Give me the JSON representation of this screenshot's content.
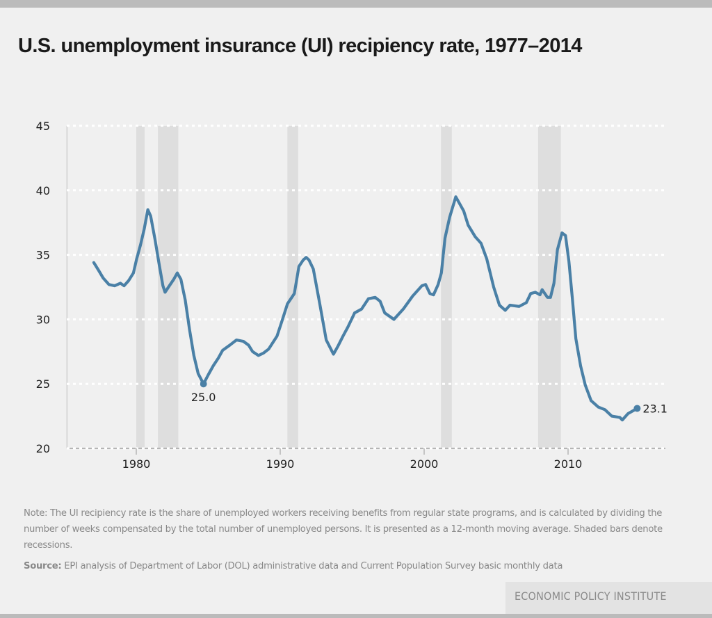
{
  "header": {
    "title": "U.S. unemployment insurance (UI) recipiency rate, 1977–2014"
  },
  "footer": {
    "note": "Note: The UI recipiency rate is the share of unemployed workers receiving benefits from regular state programs, and is calculated by dividing the number of weeks compensated by the total number of unemployed persons. It is presented as a 12-month moving average. Shaded bars denote recessions.",
    "source_label": "Source:",
    "source_text": " EPI analysis of Department of Labor (DOL) administrative data and Current Population Survey basic monthly data",
    "brand": "ECONOMIC POLICY INSTITUTE"
  },
  "colors": {
    "line": "#4a80a6",
    "recession": "#dedede",
    "gridline": "#ffffff",
    "axis": "#b5b5b5",
    "background": "#f0f0f0"
  },
  "chart_data": {
    "type": "line",
    "title": "U.S. unemployment insurance (UI) recipiency rate, 1977–2014",
    "xlabel": "",
    "ylabel": "",
    "xlim": [
      1975,
      2017.1
    ],
    "ylim": [
      20,
      45
    ],
    "x_ticks": [
      1980,
      1990,
      2000,
      2010
    ],
    "x_tick_labels": [
      "1980",
      "1990",
      "2000",
      "2010"
    ],
    "y_ticks": [
      20,
      25,
      30,
      35,
      40,
      45
    ],
    "y_tick_labels": [
      "20",
      "25",
      "30",
      "35",
      "40",
      "45"
    ],
    "grid": "horizontal dotted",
    "legend": "none",
    "recessions": [
      [
        1980.0,
        1980.58
      ],
      [
        1981.5,
        1982.92
      ],
      [
        1990.5,
        1991.25
      ],
      [
        2001.17,
        2001.92
      ],
      [
        2007.92,
        2009.5
      ]
    ],
    "series": [
      {
        "name": "UI recipiency rate",
        "x": [
          1977.05,
          1977.38,
          1977.7,
          1978.1,
          1978.5,
          1978.9,
          1979.15,
          1979.47,
          1979.8,
          1980.03,
          1980.3,
          1980.55,
          1980.8,
          1981.0,
          1981.3,
          1981.6,
          1981.85,
          1982.0,
          1982.3,
          1982.6,
          1982.85,
          1983.1,
          1983.4,
          1983.7,
          1984.0,
          1984.3,
          1984.67,
          1985.0,
          1985.35,
          1985.7,
          1986.0,
          1986.5,
          1986.96,
          1987.44,
          1987.8,
          1988.08,
          1988.49,
          1988.85,
          1989.2,
          1989.78,
          1990.1,
          1990.5,
          1990.98,
          1991.3,
          1991.6,
          1991.8,
          1992.0,
          1992.3,
          1992.75,
          1993.2,
          1993.7,
          1994.0,
          1994.36,
          1994.7,
          1995.17,
          1995.65,
          1996.13,
          1996.6,
          1996.94,
          1997.26,
          1997.9,
          1998.55,
          1999.2,
          1999.84,
          2000.1,
          2000.4,
          2000.65,
          2000.97,
          2001.2,
          2001.45,
          2001.77,
          2002.2,
          2002.45,
          2002.75,
          2003.06,
          2003.55,
          2003.95,
          2004.35,
          2004.83,
          2005.23,
          2005.64,
          2005.96,
          2006.6,
          2007.1,
          2007.4,
          2007.73,
          2008.05,
          2008.2,
          2008.57,
          2008.78,
          2009.02,
          2009.26,
          2009.58,
          2009.82,
          2010.06,
          2010.3,
          2010.54,
          2010.87,
          2011.2,
          2011.6,
          2012.1,
          2012.56,
          2013.04,
          2013.6,
          2013.77,
          2014.17,
          2014.8
        ],
        "y": [
          34.4,
          33.8,
          33.2,
          32.7,
          32.6,
          32.8,
          32.6,
          33.0,
          33.6,
          34.7,
          35.8,
          37.0,
          38.5,
          38.0,
          36.2,
          34.2,
          32.6,
          32.1,
          32.6,
          33.1,
          33.6,
          33.1,
          31.5,
          29.2,
          27.2,
          25.8,
          25.0,
          25.7,
          26.4,
          27.0,
          27.6,
          28.0,
          28.4,
          28.3,
          28.0,
          27.5,
          27.2,
          27.4,
          27.7,
          28.7,
          29.8,
          31.2,
          32.0,
          34.1,
          34.6,
          34.8,
          34.6,
          33.9,
          31.2,
          28.4,
          27.3,
          27.9,
          28.7,
          29.4,
          30.5,
          30.8,
          31.6,
          31.7,
          31.4,
          30.5,
          30.0,
          30.8,
          31.8,
          32.6,
          32.7,
          32.0,
          31.9,
          32.7,
          33.6,
          36.3,
          37.9,
          39.5,
          39.0,
          38.4,
          37.3,
          36.4,
          35.9,
          34.7,
          32.5,
          31.1,
          30.7,
          31.1,
          31.0,
          31.3,
          32.0,
          32.1,
          31.9,
          32.3,
          31.7,
          31.7,
          32.8,
          35.4,
          36.7,
          36.5,
          34.5,
          31.6,
          28.5,
          26.4,
          24.9,
          23.7,
          23.2,
          23.0,
          22.5,
          22.4,
          22.2,
          22.7,
          23.1
        ]
      }
    ],
    "annotations": [
      {
        "x": 1984.67,
        "y": 25.0,
        "label": "25.0",
        "position": "below"
      },
      {
        "x": 2014.8,
        "y": 23.1,
        "label": "23.1",
        "position": "right"
      }
    ]
  }
}
